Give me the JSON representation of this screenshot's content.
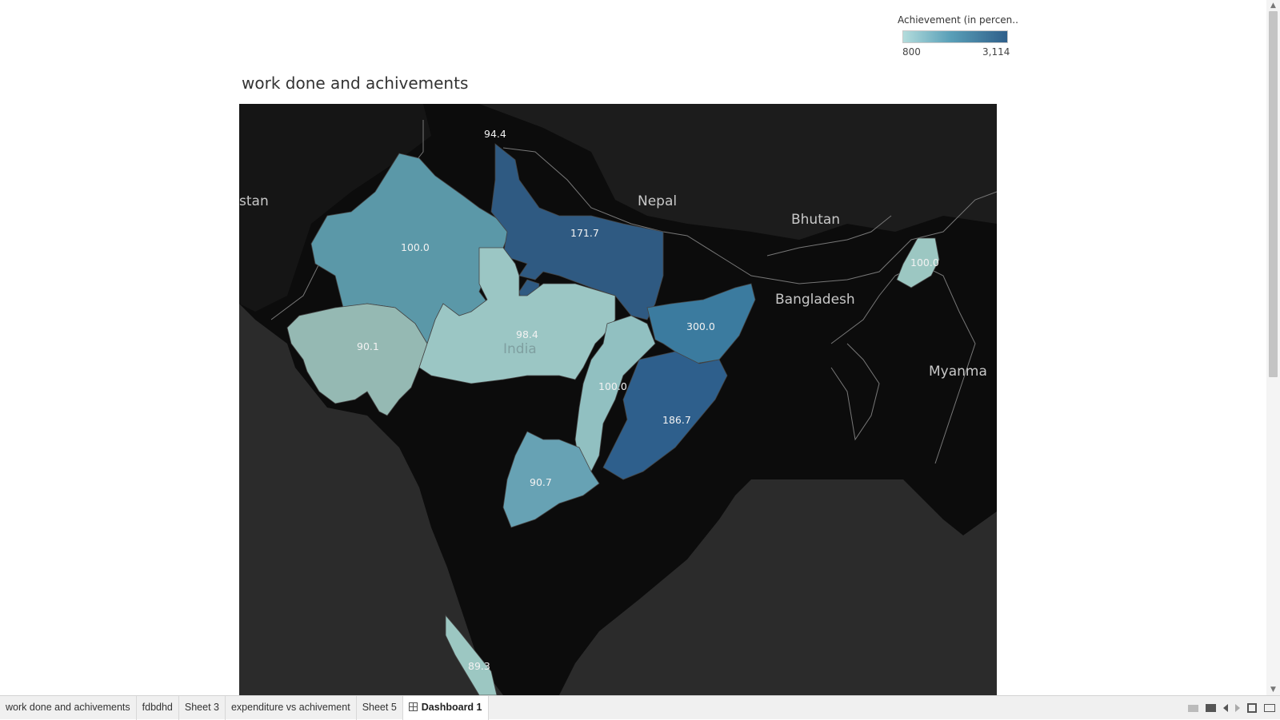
{
  "legend": {
    "title": "Achievement (in percen..",
    "min": "800",
    "max": "3,114"
  },
  "sheet_title": "work done and achivements",
  "map": {
    "regions": [
      {
        "name": "jammu-kashmir",
        "label": "94.4",
        "color": "#000000"
      },
      {
        "name": "rajasthan",
        "label": "100.0",
        "color": "#5b98a8"
      },
      {
        "name": "uttar-pradesh",
        "label": "171.7",
        "color": "#2f5a82"
      },
      {
        "name": "gujarat",
        "label": "90.1",
        "color": "#95b9b3"
      },
      {
        "name": "madhya-pradesh",
        "label": "98.4",
        "color": "#9bc6c4"
      },
      {
        "name": "chhattisgarh",
        "label": "100.0",
        "color": "#91c0c1"
      },
      {
        "name": "jharkhand",
        "label": "300.0",
        "color": "#3b7b9f"
      },
      {
        "name": "odisha",
        "label": "186.7",
        "color": "#2e5f8c"
      },
      {
        "name": "telangana",
        "label": "90.7",
        "color": "#67a2b4"
      },
      {
        "name": "manipur",
        "label": "100.0",
        "color": "#9cc7c2"
      },
      {
        "name": "kerala",
        "label": "89.3",
        "color": "#9cc7c2"
      }
    ],
    "countries": [
      "stan",
      "Nepal",
      "Bhutan",
      "Bangladesh",
      "Myanma",
      "India"
    ]
  },
  "tabs": [
    {
      "label": "work done and achivements",
      "active": false
    },
    {
      "label": "fdbdhd",
      "active": false
    },
    {
      "label": "Sheet 3",
      "active": false
    },
    {
      "label": "expenditure vs achivement",
      "active": false
    },
    {
      "label": "Sheet 5",
      "active": false
    },
    {
      "label": "Dashboard 1",
      "active": true
    }
  ]
}
